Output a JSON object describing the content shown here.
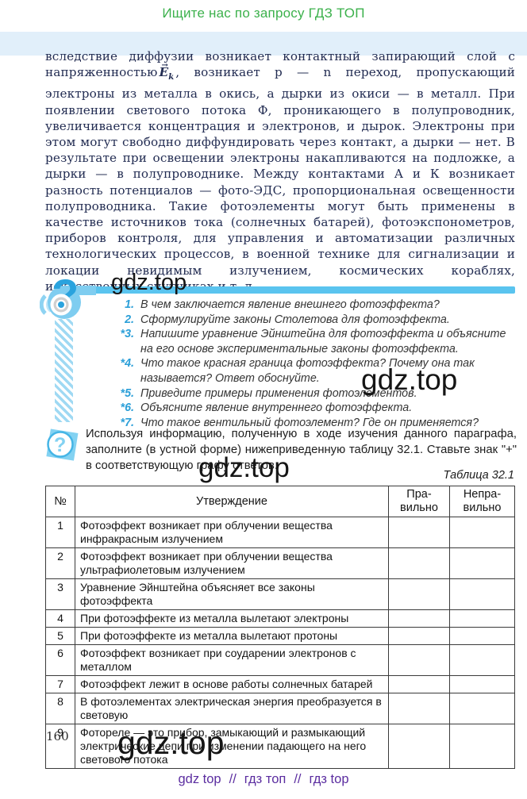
{
  "page": {
    "promo": "Ищите нас по запросу ГДЗ ТОП",
    "page_number": "160",
    "watermark": "gdz.top"
  },
  "colors": {
    "accent_blue": "#5ac4ef",
    "promo_green": "#3cb14c",
    "band_blue": "#e1effa",
    "footer_purple": "#5b2da0",
    "body_text_navy": "#222c52"
  },
  "article": {
    "text_before_formula": "вследствие диффузии возникает контактный запирающий слой с напряженностью",
    "formula": {
      "arrow": "→",
      "base": "E",
      "sub": "k"
    },
    "text_after_formula": ", возникает p — n переход, пропускающий электроны из металла в окись, а дырки из окиси — в металл. При появлении светового потока Ф, проникающего в полупроводник, увеличивается концентрация и электронов, и дырок. Электроны при этом могут свободно диффундировать через контакт, а дырки — нет. В результате при освещении электроны накапливаются на подложке, а дырки — в полупроводнике. Между контактами А и К возникает разность потенциалов — фото-ЭДС, пропорциональная освещенности полупроводника. Такие фотоэлементы могут быть применены в качестве источников тока (солнечных батарей), фотоэкспонометров, приборов контроля, для управления и автоматизации различных технологических процессов, в военной технике для сигнализации и локации невидимым излучением, космических кораблях, искусственных спутниках и т. д."
  },
  "questions": {
    "items": [
      {
        "num": "1.",
        "text": "В чем заключается явление внешнего фотоэффекта?"
      },
      {
        "num": "2.",
        "text": "Сформулируйте законы Столетова для фотоэффекта."
      },
      {
        "num": "*3.",
        "text": "Напишите уравнение Эйнштейна для фотоэффекта и объясните на его основе экспериментальные законы фотоэффекта."
      },
      {
        "num": "*4.",
        "text": "Что такое красная граница фотоэффекта? Почему она так называется? Ответ обоснуйте."
      },
      {
        "num": "*5.",
        "text": "Приведите примеры применения фотоэлементов."
      },
      {
        "num": "*6.",
        "text": "Объясните явление внутреннего фотоэффекта."
      },
      {
        "num": "*7.",
        "text": "Что такое вентильный фотоэлемент? Где он применяется?"
      }
    ]
  },
  "assignment": {
    "text": "Используя информацию, полученную в ходе изучения данного параграфа, заполните (в устной форме) нижеприведенную таблицу 32.1. Ставьте знак \"+\" в соответствующую графу ответов.",
    "table_caption": "Таблица 32.1"
  },
  "table": {
    "headers": [
      "№",
      "Утверждение",
      "Пра-вильно",
      "Непра-вильно"
    ],
    "rows": [
      {
        "num": "1",
        "statement": "Фотоэффект возникает при облучении вещества инфракрасным излучением",
        "correct": "",
        "incorrect": ""
      },
      {
        "num": "2",
        "statement": "Фотоэффект возникает при облучении вещества ультрафиолетовым излучением",
        "correct": "",
        "incorrect": ""
      },
      {
        "num": "3",
        "statement": "Уравнение Эйнштейна объясняет все законы фотоэффекта",
        "correct": "",
        "incorrect": ""
      },
      {
        "num": "4",
        "statement": "При фотоэффекте из металла вылетают электроны",
        "correct": "",
        "incorrect": ""
      },
      {
        "num": "5",
        "statement": "При фотоэффекте из металла вылетают протоны",
        "correct": "",
        "incorrect": ""
      },
      {
        "num": "6",
        "statement": "Фотоэффект возникает при соударении электронов с металлом",
        "correct": "",
        "incorrect": ""
      },
      {
        "num": "7",
        "statement": "Фотоэффект лежит в основе работы солнечных батарей",
        "correct": "",
        "incorrect": ""
      },
      {
        "num": "8",
        "statement": "В фотоэлементах электрическая энергия преобразуется в световую",
        "correct": "",
        "incorrect": ""
      },
      {
        "num": "9",
        "statement": "Фотореле — это прибор, замыкающий и размыкающий электрические цепи при изменении падающего на него светового потока",
        "correct": "",
        "incorrect": ""
      }
    ]
  },
  "footer": {
    "links": [
      "gdz top",
      "гдз топ",
      "гдз top"
    ],
    "separator": "//"
  }
}
